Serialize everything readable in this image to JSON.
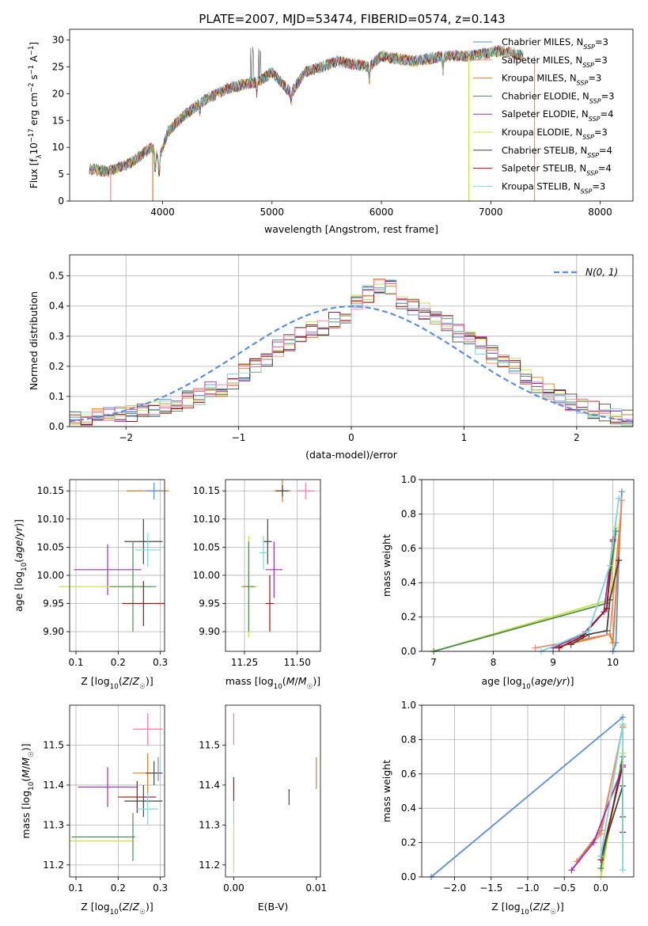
{
  "figure_title": "PLATE=2007, MJD=53474, FIBERID=0574, z=0.143",
  "colors": {
    "chabrier_miles": "#5a8fe0",
    "salpeter_miles": "#f28b6d",
    "kroupa_miles": "#e07b1a",
    "chabrier_elodie": "#4f8a55",
    "salpeter_elodie": "#9b2fb8",
    "kroupa_elodie": "#c7e33a",
    "chabrier_stelib": "#444444",
    "salpeter_stelib": "#9b1111",
    "kroupa_stelib": "#79d9d9",
    "pink": "#ff77aa",
    "gaussian": "#5a8fe0",
    "grid": "#b0b0b0"
  },
  "chart_data": [
    {
      "id": "spectrum",
      "type": "line",
      "title": "PLATE=2007, MJD=53474, FIBERID=0574, z=0.143",
      "xlabel": "wavelength [Angstrom, rest frame]",
      "ylabel": "Flux [f_λ 10^-17 erg cm^-2 s^-1 A^-1]",
      "xlim": [
        3150,
        8300
      ],
      "ylim": [
        0,
        32
      ],
      "xticks": [
        4000,
        5000,
        6000,
        7000,
        8000
      ],
      "yticks": [
        0,
        5,
        10,
        15,
        20,
        25,
        30
      ],
      "grid": false,
      "legend_position": "top-right",
      "legend": [
        {
          "name": "Chabrier MILES, N",
          "sub": "SSP",
          "suffix": "=3",
          "color_key": "chabrier_miles"
        },
        {
          "name": "Salpeter MILES, N",
          "sub": "SSP",
          "suffix": "=3",
          "color_key": "salpeter_miles"
        },
        {
          "name": "Kroupa MILES, N",
          "sub": "SSP",
          "suffix": "=3",
          "color_key": "kroupa_miles"
        },
        {
          "name": "Chabrier ELODIE, N",
          "sub": "SSP",
          "suffix": "=3",
          "color_key": "chabrier_elodie"
        },
        {
          "name": "Salpeter ELODIE, N",
          "sub": "SSP",
          "suffix": "=4",
          "color_key": "salpeter_elodie"
        },
        {
          "name": "Kroupa ELODIE, N",
          "sub": "SSP",
          "suffix": "=3",
          "color_key": "kroupa_elodie"
        },
        {
          "name": "Chabrier STELIB, N",
          "sub": "SSP",
          "suffix": "=4",
          "color_key": "chabrier_stelib"
        },
        {
          "name": "Salpeter STELIB, N",
          "sub": "SSP",
          "suffix": "=4",
          "color_key": "salpeter_stelib"
        },
        {
          "name": "Kroupa STELIB, N",
          "sub": "SSP",
          "suffix": "=3",
          "color_key": "kroupa_stelib"
        }
      ],
      "observed_approx": [
        [
          3330,
          6
        ],
        [
          3500,
          5.5
        ],
        [
          3700,
          7
        ],
        [
          3900,
          10
        ],
        [
          3970,
          8
        ],
        [
          4050,
          13
        ],
        [
          4200,
          16
        ],
        [
          4400,
          19
        ],
        [
          4600,
          21
        ],
        [
          4800,
          22
        ],
        [
          4860,
          22
        ],
        [
          5000,
          24
        ],
        [
          5175,
          20
        ],
        [
          5300,
          24
        ],
        [
          5600,
          26
        ],
        [
          5890,
          25
        ],
        [
          6000,
          27
        ],
        [
          6300,
          26
        ],
        [
          6563,
          27
        ],
        [
          6800,
          27
        ],
        [
          7100,
          28
        ],
        [
          7300,
          27
        ]
      ],
      "absorption_lines": [
        [
          3933,
          5.5
        ],
        [
          3968,
          4.5
        ],
        [
          4101,
          14
        ],
        [
          4340,
          16
        ],
        [
          4861,
          20
        ],
        [
          5175,
          18
        ],
        [
          5890,
          22
        ],
        [
          6563,
          24
        ]
      ],
      "model_dropouts": [
        {
          "x": 3525,
          "color_key": "salpeter_miles"
        },
        {
          "x": 3910,
          "color_key": "kroupa_miles"
        },
        {
          "x": 6800,
          "color_key": "kroupa_elodie"
        },
        {
          "x": 7400,
          "color_key": "salpeter_miles"
        }
      ]
    },
    {
      "id": "residuals",
      "type": "histogram",
      "xlabel": "(data-model)/error",
      "ylabel": "Normed distribution",
      "xlim": [
        -2.5,
        2.5
      ],
      "ylim": [
        0,
        0.57
      ],
      "xticks": [
        -2,
        -1,
        0,
        1,
        2
      ],
      "yticks": [
        0.0,
        0.1,
        0.2,
        0.3,
        0.4,
        0.5
      ],
      "grid": true,
      "legend_position": "top-right",
      "legend": [
        {
          "name": "N(0, 1)",
          "color_key": "gaussian",
          "style": "dashed"
        }
      ],
      "bin_width": 0.1,
      "bin_start": -2.5,
      "base_values": [
        0.02,
        0.025,
        0.03,
        0.035,
        0.04,
        0.045,
        0.05,
        0.06,
        0.07,
        0.08,
        0.09,
        0.1,
        0.12,
        0.13,
        0.15,
        0.18,
        0.2,
        0.22,
        0.26,
        0.28,
        0.3,
        0.32,
        0.33,
        0.35,
        0.37,
        0.41,
        0.44,
        0.47,
        0.46,
        0.42,
        0.4,
        0.38,
        0.36,
        0.34,
        0.31,
        0.29,
        0.27,
        0.24,
        0.22,
        0.2,
        0.17,
        0.14,
        0.12,
        0.1,
        0.08,
        0.07,
        0.055,
        0.045,
        0.035,
        0.025
      ],
      "series_keys": [
        "chabrier_miles",
        "salpeter_miles",
        "kroupa_miles",
        "chabrier_elodie",
        "salpeter_elodie",
        "kroupa_elodie",
        "chabrier_stelib",
        "salpeter_stelib",
        "kroupa_stelib",
        "pink"
      ]
    },
    {
      "id": "age_vs_z",
      "type": "errorbar",
      "xlabel": "Z [log10(Z/Z☉)]",
      "ylabel": "age  [log10(age/yr)]",
      "xlim": [
        0.085,
        0.31
      ],
      "ylim": [
        9.865,
        10.17
      ],
      "xticks": [
        0.1,
        0.2,
        0.3
      ],
      "yticks": [
        9.9,
        9.95,
        10.0,
        10.05,
        10.1,
        10.15
      ],
      "grid": true,
      "points": [
        {
          "x": 0.27,
          "xerr": 0.05,
          "y": 10.15,
          "yerr": 0.0,
          "color_key": "kroupa_miles"
        },
        {
          "x": 0.285,
          "xerr": 0.02,
          "y": 10.15,
          "yerr": 0.015,
          "color_key": "chabrier_miles"
        },
        {
          "x": 0.26,
          "xerr": 0.045,
          "y": 10.06,
          "yerr": 0.04,
          "color_key": "chabrier_stelib"
        },
        {
          "x": 0.27,
          "xerr": 0.03,
          "y": 10.045,
          "yerr": 0.03,
          "color_key": "kroupa_stelib"
        },
        {
          "x": 0.175,
          "xerr": 0.08,
          "y": 10.01,
          "yerr": 0.045,
          "color_key": "salpeter_elodie"
        },
        {
          "x": 0.17,
          "xerr": 0.11,
          "y": 9.98,
          "yerr": 0.0,
          "color_key": "kroupa_elodie"
        },
        {
          "x": 0.235,
          "xerr": 0.055,
          "y": 9.98,
          "yerr": 0.08,
          "color_key": "chabrier_elodie"
        },
        {
          "x": 0.26,
          "xerr": 0.05,
          "y": 9.95,
          "yerr": 0.04,
          "color_key": "salpeter_stelib"
        }
      ]
    },
    {
      "id": "age_vs_mass",
      "type": "errorbar",
      "xlabel": "mass [log10(M/M☉)]",
      "ylabel": "",
      "xlim": [
        11.16,
        11.61
      ],
      "ylim": [
        9.865,
        10.17
      ],
      "xticks": [
        11.25,
        11.5
      ],
      "yticks": [
        9.9,
        9.95,
        10.0,
        10.05,
        10.1,
        10.15
      ],
      "grid": true,
      "points": [
        {
          "x": 11.43,
          "xerr": 0.04,
          "y": 10.15,
          "yerr": 0.02,
          "color_key": "kroupa_miles"
        },
        {
          "x": 11.43,
          "xerr": 0.03,
          "y": 10.15,
          "yerr": 0.01,
          "color_key": "chabrier_stelib"
        },
        {
          "x": 11.54,
          "xerr": 0.04,
          "y": 10.15,
          "yerr": 0.015,
          "color_key": "pink"
        },
        {
          "x": 11.36,
          "xerr": 0.02,
          "y": 10.06,
          "yerr": 0.04,
          "color_key": "chabrier_stelib"
        },
        {
          "x": 11.34,
          "xerr": 0.02,
          "y": 10.04,
          "yerr": 0.03,
          "color_key": "kroupa_stelib"
        },
        {
          "x": 11.39,
          "xerr": 0.04,
          "y": 10.01,
          "yerr": 0.05,
          "color_key": "salpeter_elodie"
        },
        {
          "x": 11.27,
          "xerr": 0.04,
          "y": 9.98,
          "yerr": 0.09,
          "color_key": "kroupa_elodie"
        },
        {
          "x": 11.27,
          "xerr": 0.03,
          "y": 9.98,
          "yerr": 0.08,
          "color_key": "chabrier_elodie"
        },
        {
          "x": 11.37,
          "xerr": 0.02,
          "y": 9.95,
          "yerr": 0.05,
          "color_key": "salpeter_stelib"
        }
      ]
    },
    {
      "id": "weight_vs_age",
      "type": "line",
      "xlabel": "age  [log10(age/yr)]",
      "ylabel": "mass weight",
      "xlim": [
        6.8,
        10.35
      ],
      "ylim": [
        0,
        1.0
      ],
      "xticks": [
        7,
        8,
        9,
        10
      ],
      "yticks": [
        0.0,
        0.2,
        0.4,
        0.6,
        0.8,
        1.0
      ],
      "grid": true,
      "series": [
        {
          "color_key": "chabrier_miles",
          "points": [
            [
              10.15,
              0.93
            ],
            [
              10.1,
              0.53
            ],
            [
              10.05,
              0.05
            ],
            [
              10.0,
              0.0
            ]
          ]
        },
        {
          "color_key": "kroupa_miles",
          "points": [
            [
              10.15,
              0.88
            ],
            [
              10.0,
              0.05
            ],
            [
              9.95,
              0.1
            ],
            [
              9.0,
              0.02
            ]
          ]
        },
        {
          "color_key": "salpeter_miles",
          "points": [
            [
              10.15,
              0.88
            ],
            [
              9.95,
              0.1
            ],
            [
              8.7,
              0.02
            ]
          ]
        },
        {
          "color_key": "kroupa_elodie",
          "points": [
            [
              10.05,
              0.72
            ],
            [
              9.95,
              0.3
            ],
            [
              7.0,
              0.0
            ]
          ]
        },
        {
          "color_key": "chabrier_elodie",
          "points": [
            [
              10.05,
              0.7
            ],
            [
              9.9,
              0.28
            ],
            [
              7.0,
              0.0
            ]
          ]
        },
        {
          "color_key": "salpeter_elodie",
          "points": [
            [
              10.0,
              0.64
            ],
            [
              9.85,
              0.23
            ],
            [
              9.5,
              0.1
            ],
            [
              9.0,
              0.02
            ]
          ]
        },
        {
          "color_key": "salpeter_stelib",
          "points": [
            [
              10.0,
              0.65
            ],
            [
              9.9,
              0.25
            ],
            [
              9.5,
              0.09
            ],
            [
              9.1,
              0.02
            ]
          ]
        },
        {
          "color_key": "chabrier_stelib",
          "points": [
            [
              10.1,
              0.53
            ],
            [
              9.95,
              0.3
            ],
            [
              9.9,
              0.12
            ],
            [
              9.6,
              0.1
            ],
            [
              9.3,
              0.04
            ]
          ]
        },
        {
          "color_key": "kroupa_stelib",
          "points": [
            [
              10.1,
              0.89
            ],
            [
              9.95,
              0.5
            ],
            [
              9.6,
              0.12
            ],
            [
              8.8,
              0.0
            ]
          ]
        }
      ]
    },
    {
      "id": "mass_vs_z",
      "type": "errorbar",
      "xlabel": "Z [log10(Z/Z☉)]",
      "ylabel": "mass [log10(M/M☉)]",
      "xlim": [
        0.085,
        0.31
      ],
      "ylim": [
        11.17,
        11.6
      ],
      "xticks": [
        0.1,
        0.2,
        0.3
      ],
      "yticks": [
        11.2,
        11.3,
        11.4,
        11.5
      ],
      "grid": true,
      "points": [
        {
          "x": 0.27,
          "xerr": 0.035,
          "y": 11.54,
          "yerr": 0.04,
          "color_key": "pink"
        },
        {
          "x": 0.27,
          "xerr": 0.035,
          "y": 11.43,
          "yerr": 0.05,
          "color_key": "kroupa_miles"
        },
        {
          "x": 0.285,
          "xerr": 0.02,
          "y": 11.43,
          "yerr": 0.03,
          "color_key": "chabrier_stelib"
        },
        {
          "x": 0.295,
          "xerr": 0.0,
          "y": 11.44,
          "yerr": 0.03,
          "color_key": "chabrier_miles"
        },
        {
          "x": 0.175,
          "xerr": 0.07,
          "y": 11.395,
          "yerr": 0.05,
          "color_key": "salpeter_elodie"
        },
        {
          "x": 0.245,
          "xerr": 0.045,
          "y": 11.37,
          "yerr": 0.04,
          "color_key": "salpeter_stelib"
        },
        {
          "x": 0.26,
          "xerr": 0.045,
          "y": 11.36,
          "yerr": 0.04,
          "color_key": "chabrier_stelib"
        },
        {
          "x": 0.27,
          "xerr": 0.025,
          "y": 11.34,
          "yerr": 0.04,
          "color_key": "kroupa_stelib"
        },
        {
          "x": 0.165,
          "xerr": 0.075,
          "y": 11.27,
          "yerr": 0.0,
          "color_key": "chabrier_elodie"
        },
        {
          "x": 0.16,
          "xerr": 0.075,
          "y": 11.26,
          "yerr": 0.0,
          "color_key": "kroupa_elodie"
        },
        {
          "x": 0.235,
          "xerr": 0.0,
          "y": 11.27,
          "yerr": 0.06,
          "color_key": "chabrier_elodie"
        }
      ]
    },
    {
      "id": "mass_vs_ebv",
      "type": "errorbar",
      "xlabel": "E(B-V)",
      "ylabel": "",
      "xlim": [
        -0.001,
        0.0105
      ],
      "ylim": [
        11.17,
        11.6
      ],
      "xticks": [
        0.0,
        0.01
      ],
      "yticks": [
        11.2,
        11.3,
        11.4,
        11.5
      ],
      "grid": false,
      "points": [
        {
          "x": 0.0,
          "xerr": 0.0,
          "y": 11.54,
          "yerr": 0.04,
          "color_key": "pink"
        },
        {
          "x": 0.0,
          "xerr": 0.0,
          "y": 11.39,
          "yerr": 0.03,
          "color_key": "salpeter_stelib"
        },
        {
          "x": 0.0,
          "xerr": 0.0,
          "y": 11.33,
          "yerr": 0.03,
          "color_key": "kroupa_stelib"
        },
        {
          "x": 0.0,
          "xerr": 0.0,
          "y": 11.24,
          "yerr": 0.06,
          "color_key": "kroupa_elodie"
        },
        {
          "x": 0.0067,
          "xerr": 0.0,
          "y": 11.37,
          "yerr": 0.02,
          "color_key": "chabrier_stelib"
        },
        {
          "x": 0.01,
          "xerr": 0.0,
          "y": 11.43,
          "yerr": 0.04,
          "color_key": "kroupa_miles"
        }
      ]
    },
    {
      "id": "weight_vs_z",
      "type": "line",
      "xlabel": "Z [log10(Z/Z☉)]",
      "ylabel": "mass weight",
      "xlim": [
        -2.45,
        0.45
      ],
      "ylim": [
        0,
        1.0
      ],
      "xticks": [
        -2.0,
        -1.5,
        -1.0,
        -0.5,
        0.0
      ],
      "yticks": [
        0.0,
        0.2,
        0.4,
        0.6,
        0.8,
        1.0
      ],
      "grid": true,
      "series": [
        {
          "color_key": "chabrier_miles",
          "points": [
            [
              -2.32,
              0.0
            ],
            [
              0.3,
              0.93
            ]
          ]
        },
        {
          "color_key": "kroupa_miles",
          "points": [
            [
              -0.33,
              0.09
            ],
            [
              0.0,
              0.27
            ],
            [
              0.3,
              0.87
            ]
          ]
        },
        {
          "color_key": "salpeter_miles",
          "points": [
            [
              -0.33,
              0.09
            ],
            [
              0.0,
              0.25
            ],
            [
              0.3,
              0.88
            ]
          ]
        },
        {
          "color_key": "kroupa_elodie",
          "points": [
            [
              0.0,
              0.0
            ],
            [
              0.3,
              0.72
            ]
          ]
        },
        {
          "color_key": "chabrier_elodie",
          "points": [
            [
              0.0,
              0.05
            ],
            [
              0.3,
              0.7
            ]
          ]
        },
        {
          "color_key": "salpeter_elodie",
          "points": [
            [
              -0.4,
              0.04
            ],
            [
              -0.1,
              0.2
            ],
            [
              0.3,
              0.64
            ]
          ]
        },
        {
          "color_key": "salpeter_stelib",
          "points": [
            [
              0.0,
              0.1
            ],
            [
              0.3,
              0.65
            ],
            [
              0.3,
              0.26
            ]
          ]
        },
        {
          "color_key": "chabrier_stelib",
          "points": [
            [
              0.0,
              0.12
            ],
            [
              0.3,
              0.53
            ],
            [
              0.3,
              0.35
            ]
          ]
        },
        {
          "color_key": "kroupa_stelib",
          "points": [
            [
              0.0,
              0.12
            ],
            [
              0.3,
              0.89
            ],
            [
              0.3,
              0.04
            ]
          ]
        }
      ]
    }
  ]
}
